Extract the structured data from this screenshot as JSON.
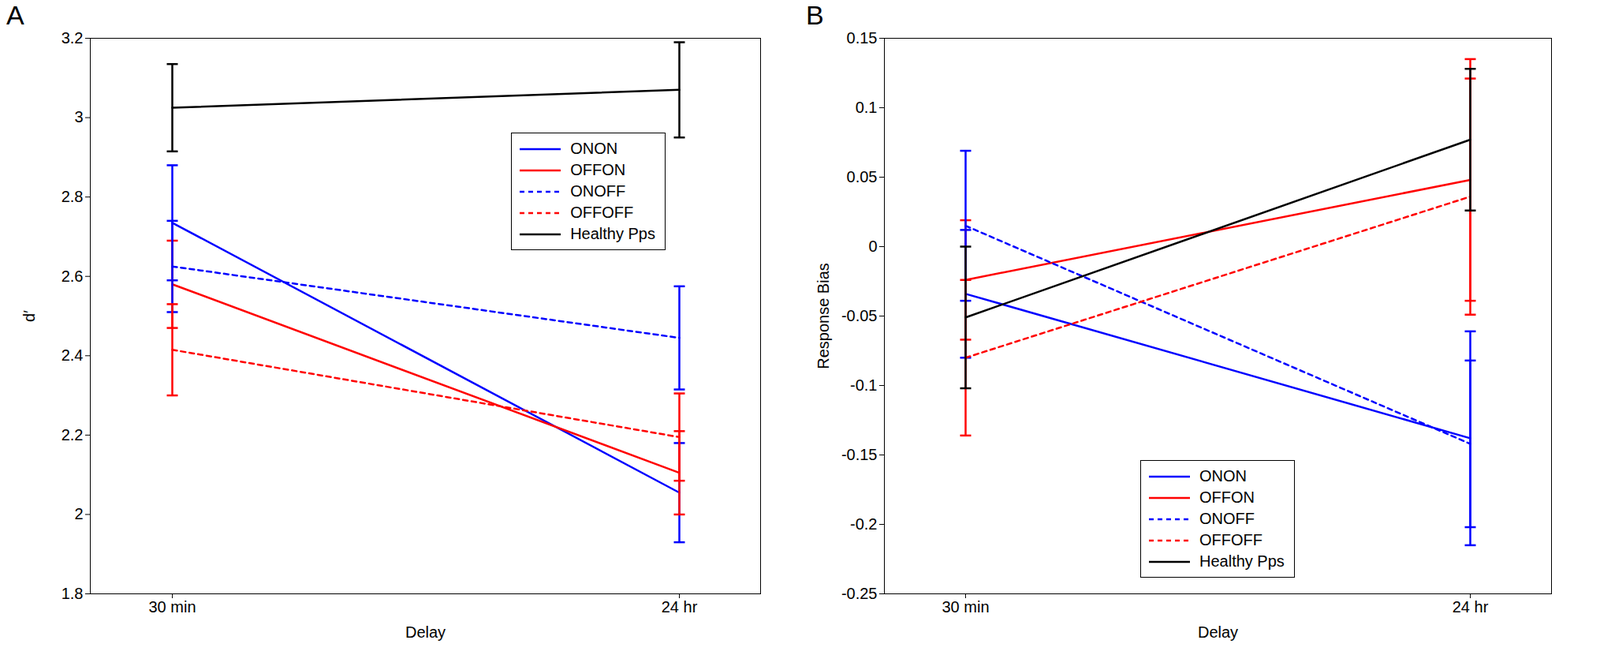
{
  "chart_data": [
    {
      "type": "line",
      "title": "A",
      "xlabel": "Delay",
      "ylabel": "d′",
      "categories": [
        "30 min",
        "24 hr"
      ],
      "ylim": [
        1.8,
        3.2
      ],
      "yticks": [
        1.8,
        2,
        2.2,
        2.4,
        2.6,
        2.8,
        3,
        3.2
      ],
      "legend": "upper right",
      "series": [
        {
          "name": "ONON",
          "color": "#0000ff",
          "line_style": "solid",
          "values": [
            2.735,
            2.055
          ],
          "errors": [
            0.145,
            0.125
          ]
        },
        {
          "name": "OFFON",
          "color": "#ff0000",
          "line_style": "solid",
          "values": [
            2.58,
            2.105
          ],
          "errors": [
            0.11,
            0.105
          ]
        },
        {
          "name": "ONOFF",
          "color": "#0000ff",
          "line_style": "dotted",
          "values": [
            2.625,
            2.445
          ],
          "errors": [
            0.115,
            0.13
          ]
        },
        {
          "name": "OFFOFF",
          "color": "#ff0000",
          "line_style": "dotted",
          "values": [
            2.415,
            2.195
          ],
          "errors": [
            0.115,
            0.11
          ]
        },
        {
          "name": "Healthy Pps",
          "color": "#000000",
          "line_style": "solid",
          "values": [
            3.025,
            3.07
          ],
          "errors": [
            0.11,
            0.12
          ]
        }
      ]
    },
    {
      "type": "line",
      "title": "B",
      "xlabel": "Delay",
      "ylabel": "Response Bias",
      "categories": [
        "30 min",
        "24 hr"
      ],
      "ylim": [
        -0.25,
        0.15
      ],
      "yticks": [
        -0.25,
        -0.2,
        -0.15,
        -0.1,
        -0.05,
        0,
        0.05,
        0.1,
        0.15
      ],
      "legend": "lower center",
      "series": [
        {
          "name": "ONON",
          "color": "#0000ff",
          "line_style": "solid",
          "values": [
            -0.034,
            -0.138
          ],
          "errors": [
            0.046,
            0.077
          ]
        },
        {
          "name": "OFFON",
          "color": "#ff0000",
          "line_style": "solid",
          "values": [
            -0.024,
            0.048
          ],
          "errors": [
            0.043,
            0.087
          ]
        },
        {
          "name": "ONOFF",
          "color": "#0000ff",
          "line_style": "dotted",
          "values": [
            0.015,
            -0.142
          ],
          "errors": [
            0.054,
            0.06
          ]
        },
        {
          "name": "OFFOFF",
          "color": "#ff0000",
          "line_style": "dotted",
          "values": [
            -0.08,
            0.036
          ],
          "errors": [
            0.056,
            0.085
          ]
        },
        {
          "name": "Healthy Pps",
          "color": "#000000",
          "line_style": "solid",
          "values": [
            -0.051,
            0.077
          ],
          "errors": [
            0.051,
            0.051
          ]
        }
      ]
    }
  ]
}
